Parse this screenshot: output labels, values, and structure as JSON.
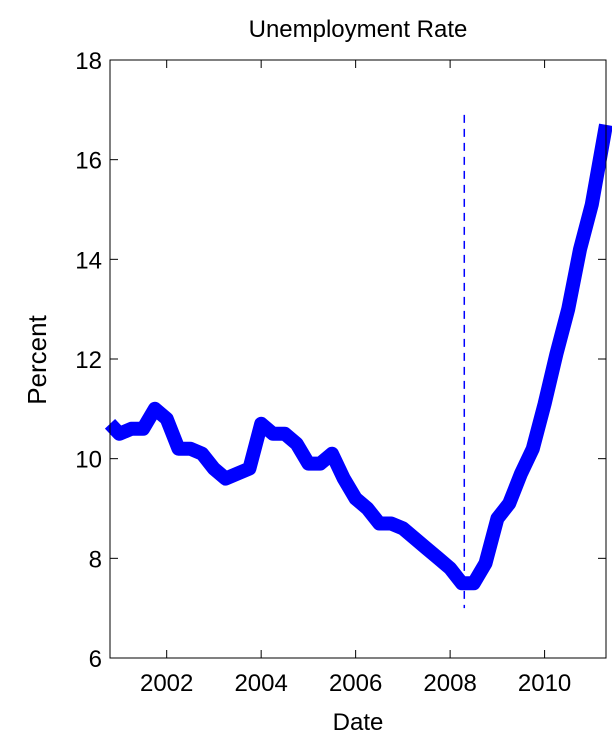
{
  "chart_data": {
    "type": "line",
    "title": "Unemployment Rate",
    "xlabel": "Date",
    "ylabel": "Percent",
    "xlim": [
      2000.8,
      2011.3
    ],
    "ylim": [
      6,
      18
    ],
    "xticks": [
      2002,
      2004,
      2006,
      2008,
      2010
    ],
    "yticks": [
      6,
      8,
      10,
      12,
      14,
      16,
      18
    ],
    "grid": false,
    "colors": {
      "line": "#0000ff",
      "axes": "#000000"
    },
    "series": [
      {
        "x": [
          2000.8,
          2001.0,
          2001.25,
          2001.5,
          2001.75,
          2002.0,
          2002.25,
          2002.5,
          2002.75,
          2003.0,
          2003.25,
          2003.5,
          2003.75,
          2004.0,
          2004.25,
          2004.5,
          2004.75,
          2005.0,
          2005.25,
          2005.5,
          2005.75,
          2006.0,
          2006.25,
          2006.5,
          2006.75,
          2007.0,
          2007.25,
          2007.5,
          2007.75,
          2008.0,
          2008.25,
          2008.5,
          2008.75,
          2009.0,
          2009.25,
          2009.5,
          2009.75,
          2010.0,
          2010.25,
          2010.5,
          2010.75,
          2011.0,
          2011.3
        ],
        "y": [
          10.7,
          10.5,
          10.6,
          10.6,
          11.0,
          10.8,
          10.2,
          10.2,
          10.1,
          9.8,
          9.6,
          9.7,
          9.8,
          10.7,
          10.5,
          10.5,
          10.3,
          9.9,
          9.9,
          10.1,
          9.6,
          9.2,
          9.0,
          8.7,
          8.7,
          8.6,
          8.4,
          8.2,
          8.0,
          7.8,
          7.5,
          7.5,
          7.9,
          8.8,
          9.1,
          9.7,
          10.2,
          11.1,
          12.1,
          13.0,
          14.2,
          15.1,
          16.7
        ]
      }
    ],
    "annotations": [
      {
        "type": "vertical-dashed-line",
        "x": 2008.3,
        "y_range": [
          7.0,
          16.9
        ]
      }
    ]
  }
}
